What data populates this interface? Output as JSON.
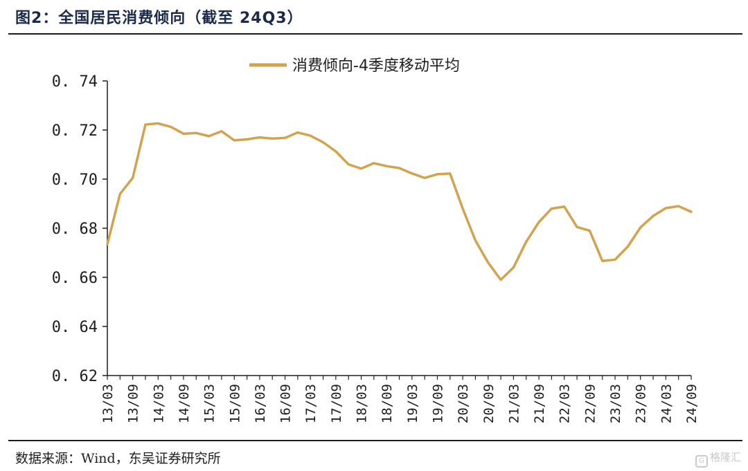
{
  "figure": {
    "title": "图2：全国居民消费倾向（截至 24Q3）",
    "source": "数据来源：Wind，东吴证券研究所",
    "watermark": "格隆汇"
  },
  "colors": {
    "line": "#D2A24C",
    "axis": "#1d1d1d",
    "rule": "#1a1a1a"
  },
  "chart_data": {
    "type": "line",
    "title": "",
    "xlabel": "",
    "ylabel": "",
    "ylim": [
      0.62,
      0.74
    ],
    "yticks": [
      "0.62",
      "0.64",
      "0.66",
      "0.68",
      "0.70",
      "0.72",
      "0.74"
    ],
    "grid": false,
    "legend_position": "top-center",
    "x_tick_labels": [
      "13/03",
      "13/09",
      "14/03",
      "14/09",
      "15/03",
      "15/09",
      "16/03",
      "16/09",
      "17/03",
      "17/09",
      "18/03",
      "18/09",
      "19/03",
      "19/09",
      "20/03",
      "20/09",
      "21/03",
      "21/09",
      "22/03",
      "22/09",
      "23/03",
      "23/09",
      "24/03",
      "24/09"
    ],
    "x": [
      "13Q1",
      "13Q2",
      "13Q3",
      "13Q4",
      "14Q1",
      "14Q2",
      "14Q3",
      "14Q4",
      "15Q1",
      "15Q2",
      "15Q3",
      "15Q4",
      "16Q1",
      "16Q2",
      "16Q3",
      "16Q4",
      "17Q1",
      "17Q2",
      "17Q3",
      "17Q4",
      "18Q1",
      "18Q2",
      "18Q3",
      "18Q4",
      "19Q1",
      "19Q2",
      "19Q3",
      "19Q4",
      "20Q1",
      "20Q2",
      "20Q3",
      "20Q4",
      "21Q1",
      "21Q2",
      "21Q3",
      "21Q4",
      "22Q1",
      "22Q2",
      "22Q3",
      "22Q4",
      "23Q1",
      "23Q2",
      "23Q3",
      "23Q4",
      "24Q1",
      "24Q2",
      "24Q3"
    ],
    "series": [
      {
        "name": "消费倾向-4季度移动平均",
        "values": [
          0.6735,
          0.694,
          0.7005,
          0.7222,
          0.7227,
          0.7213,
          0.7185,
          0.7188,
          0.7175,
          0.7195,
          0.7158,
          0.7162,
          0.717,
          0.7165,
          0.7168,
          0.719,
          0.7177,
          0.715,
          0.7113,
          0.706,
          0.7043,
          0.7065,
          0.7053,
          0.7045,
          0.7023,
          0.7005,
          0.702,
          0.7023,
          0.688,
          0.675,
          0.666,
          0.659,
          0.664,
          0.6745,
          0.6825,
          0.688,
          0.6888,
          0.6805,
          0.679,
          0.6667,
          0.6672,
          0.6725,
          0.6803,
          0.685,
          0.6882,
          0.689,
          0.6867
        ]
      }
    ]
  }
}
